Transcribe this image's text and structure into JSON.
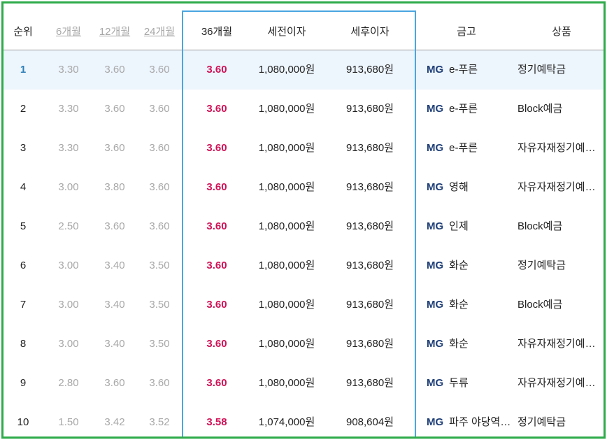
{
  "header": {
    "rank": "순위",
    "m6": "6개월",
    "m12": "12개월",
    "m24": "24개월",
    "m36": "36개월",
    "pretax": "세전이자",
    "aftertax": "세후이자",
    "bank": "금고",
    "product": "상품"
  },
  "rows": [
    {
      "rank": "1",
      "r6": "3.30",
      "r12": "3.60",
      "r24": "3.60",
      "r36": "3.60",
      "pretax": "1,080,000원",
      "aftertax": "913,680원",
      "bank_logo": "MG",
      "bank": "e-푸른",
      "product": "정기예탁금"
    },
    {
      "rank": "2",
      "r6": "3.30",
      "r12": "3.60",
      "r24": "3.60",
      "r36": "3.60",
      "pretax": "1,080,000원",
      "aftertax": "913,680원",
      "bank_logo": "MG",
      "bank": "e-푸른",
      "product": "Block예금"
    },
    {
      "rank": "3",
      "r6": "3.30",
      "r12": "3.60",
      "r24": "3.60",
      "r36": "3.60",
      "pretax": "1,080,000원",
      "aftertax": "913,680원",
      "bank_logo": "MG",
      "bank": "e-푸른",
      "product": "자유자재정기예…"
    },
    {
      "rank": "4",
      "r6": "3.00",
      "r12": "3.80",
      "r24": "3.60",
      "r36": "3.60",
      "pretax": "1,080,000원",
      "aftertax": "913,680원",
      "bank_logo": "MG",
      "bank": "영해",
      "product": "자유자재정기예…"
    },
    {
      "rank": "5",
      "r6": "2.50",
      "r12": "3.60",
      "r24": "3.60",
      "r36": "3.60",
      "pretax": "1,080,000원",
      "aftertax": "913,680원",
      "bank_logo": "MG",
      "bank": "인제",
      "product": "Block예금"
    },
    {
      "rank": "6",
      "r6": "3.00",
      "r12": "3.40",
      "r24": "3.50",
      "r36": "3.60",
      "pretax": "1,080,000원",
      "aftertax": "913,680원",
      "bank_logo": "MG",
      "bank": "화순",
      "product": "정기예탁금"
    },
    {
      "rank": "7",
      "r6": "3.00",
      "r12": "3.40",
      "r24": "3.50",
      "r36": "3.60",
      "pretax": "1,080,000원",
      "aftertax": "913,680원",
      "bank_logo": "MG",
      "bank": "화순",
      "product": "Block예금"
    },
    {
      "rank": "8",
      "r6": "3.00",
      "r12": "3.40",
      "r24": "3.50",
      "r36": "3.60",
      "pretax": "1,080,000원",
      "aftertax": "913,680원",
      "bank_logo": "MG",
      "bank": "화순",
      "product": "자유자재정기예…"
    },
    {
      "rank": "9",
      "r6": "2.80",
      "r12": "3.60",
      "r24": "3.60",
      "r36": "3.60",
      "pretax": "1,080,000원",
      "aftertax": "913,680원",
      "bank_logo": "MG",
      "bank": "두류",
      "product": "자유자재정기예…"
    },
    {
      "rank": "10",
      "r6": "1.50",
      "r12": "3.42",
      "r24": "3.52",
      "r36": "3.58",
      "pretax": "1,074,000원",
      "aftertax": "908,604원",
      "bank_logo": "MG",
      "bank": "파주 야당역…",
      "product": "정기예탁금"
    }
  ],
  "colors": {
    "border": "#2eaa4a",
    "highlight_border": "#4aa6e0",
    "rate": "#d01256",
    "first_row_bg": "#edf5fd",
    "mg_logo": "#1f3f78"
  }
}
